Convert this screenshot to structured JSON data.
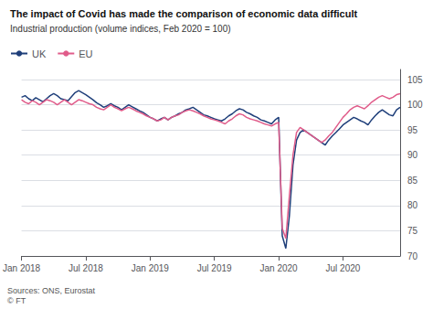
{
  "chart_data": {
    "type": "line",
    "title": "The impact of Covid has made the comparison of economic data difficult",
    "subtitle": "Industrial production (volume indices, Feb 2020 = 100)",
    "annotations": [
      "Sources: ONS, Eurostat\n© FT"
    ],
    "categories": [
      "Jan 2018",
      null,
      null,
      null,
      null,
      null,
      null,
      null,
      null,
      null,
      null,
      null,
      null,
      null,
      null,
      null,
      null,
      null,
      "Jul 2018",
      null,
      null,
      null,
      null,
      null,
      null,
      null,
      null,
      null,
      null,
      null,
      null,
      null,
      null,
      null,
      null,
      null,
      "Jan 2019",
      null,
      null,
      null,
      null,
      null,
      null,
      null,
      null,
      null,
      null,
      null,
      null,
      null,
      null,
      null,
      null,
      null,
      "Jul 2019",
      null,
      null,
      null,
      null,
      null,
      null,
      null,
      null,
      null,
      null,
      null,
      null,
      null,
      null,
      null,
      null,
      null,
      "Jan 2020",
      null,
      null,
      null,
      null,
      null,
      null,
      null,
      null,
      null,
      null,
      null,
      null,
      null,
      null,
      null,
      null,
      null,
      "Jul 2020",
      null,
      null,
      null,
      null,
      null,
      null,
      null,
      null,
      null,
      null,
      null,
      null,
      null,
      null,
      null,
      null
    ],
    "series": [
      {
        "name": "UK",
        "color": "#1f3f7a",
        "values": [
          101.5,
          101.8,
          101.2,
          100.8,
          101.4,
          101.0,
          100.6,
          101.2,
          101.8,
          102.2,
          101.8,
          101.2,
          101.0,
          100.8,
          101.6,
          102.4,
          102.8,
          102.4,
          102.0,
          101.5,
          101.0,
          100.4,
          100.0,
          99.5,
          99.8,
          100.2,
          99.8,
          99.5,
          99.0,
          99.5,
          100.0,
          99.6,
          99.2,
          98.8,
          98.5,
          98.0,
          97.5,
          97.2,
          96.8,
          97.2,
          97.5,
          97.0,
          97.5,
          97.8,
          98.2,
          98.5,
          99.0,
          99.2,
          99.5,
          99.0,
          98.5,
          98.0,
          97.8,
          97.5,
          97.2,
          97.0,
          96.8,
          97.2,
          97.8,
          98.2,
          98.8,
          99.2,
          99.0,
          98.5,
          98.2,
          97.8,
          97.5,
          97.0,
          96.8,
          96.5,
          96.2,
          97.0,
          97.5,
          74.0,
          71.5,
          78.0,
          88.0,
          93.0,
          94.5,
          95.0,
          94.5,
          94.0,
          93.5,
          93.0,
          92.5,
          92.0,
          93.0,
          93.8,
          94.5,
          95.2,
          96.0,
          96.5,
          97.0,
          97.5,
          97.2,
          96.8,
          96.5,
          96.0,
          97.0,
          97.8,
          98.5,
          99.0,
          98.5,
          98.0,
          97.8,
          99.0,
          99.5
        ]
      },
      {
        "name": "EU",
        "color": "#e05c8a",
        "values": [
          101.0,
          100.5,
          100.2,
          100.8,
          100.5,
          100.0,
          100.5,
          101.0,
          100.8,
          100.5,
          100.0,
          100.5,
          101.0,
          100.5,
          100.0,
          100.5,
          101.0,
          100.8,
          100.5,
          100.2,
          100.0,
          99.5,
          99.2,
          99.0,
          99.5,
          100.0,
          99.5,
          99.2,
          98.8,
          99.2,
          99.5,
          99.2,
          98.8,
          98.5,
          98.2,
          97.8,
          97.5,
          97.2,
          96.8,
          97.0,
          97.5,
          97.0,
          97.5,
          97.8,
          98.0,
          98.5,
          98.8,
          99.0,
          98.8,
          98.5,
          98.2,
          97.8,
          97.5,
          97.2,
          97.0,
          96.8,
          96.5,
          96.2,
          96.8,
          97.2,
          97.8,
          98.2,
          98.0,
          97.5,
          97.2,
          97.0,
          96.8,
          96.5,
          96.2,
          96.0,
          95.8,
          96.2,
          96.5,
          75.5,
          73.5,
          82.0,
          90.0,
          94.5,
          95.5,
          95.0,
          94.5,
          94.0,
          93.5,
          93.0,
          92.5,
          93.0,
          93.8,
          94.5,
          95.5,
          96.5,
          97.5,
          98.2,
          99.0,
          99.5,
          99.8,
          99.5,
          99.2,
          99.8,
          100.5,
          101.0,
          101.5,
          101.8,
          101.5,
          101.2,
          101.5,
          102.0,
          102.2
        ]
      }
    ],
    "ylim": [
      70,
      107
    ],
    "yticks": [
      70,
      75,
      80,
      85,
      90,
      95,
      100,
      105
    ],
    "grid": true,
    "legend": "upper left"
  }
}
